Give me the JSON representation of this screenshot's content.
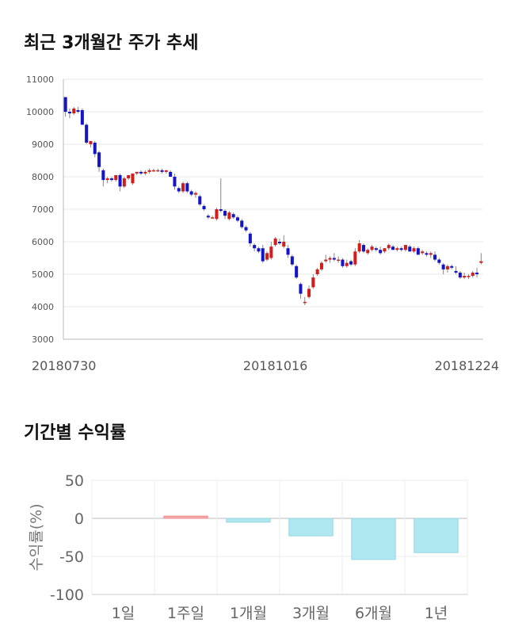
{
  "section_titles": {
    "price_trend": "최근 3개월간 주가 추세",
    "period_returns": "기간별 수익률"
  },
  "chart_data": [
    {
      "type": "candlestick",
      "title": "최근 3개월간 주가 추세",
      "ylim": [
        3000,
        11000
      ],
      "y_ticks": [
        3000,
        4000,
        5000,
        6000,
        7000,
        8000,
        9000,
        10000,
        11000
      ],
      "x_tick_labels": [
        {
          "index": 0,
          "label": "20180730"
        },
        {
          "index": 50,
          "label": "20181016"
        },
        {
          "index": 99,
          "label": "20181224"
        }
      ],
      "up_color": "#d21d1d",
      "down_color": "#1515c8",
      "grid": true,
      "ohlc": [
        [
          10450,
          10450,
          9850,
          10000
        ],
        [
          10000,
          10100,
          9800,
          9950
        ],
        [
          9950,
          10150,
          9900,
          10100
        ],
        [
          10050,
          10150,
          9950,
          10000
        ],
        [
          10050,
          10100,
          9600,
          9600
        ],
        [
          9600,
          9650,
          9000,
          9050
        ],
        [
          9000,
          9100,
          8900,
          9100
        ],
        [
          9050,
          9100,
          8600,
          8700
        ],
        [
          8750,
          8800,
          8150,
          8300
        ],
        [
          8200,
          8250,
          7700,
          7900
        ],
        [
          7900,
          8000,
          7800,
          7950
        ],
        [
          7950,
          8000,
          7850,
          7900
        ],
        [
          7900,
          8050,
          7850,
          8050
        ],
        [
          8050,
          8100,
          7550,
          7700
        ],
        [
          7700,
          8000,
          7650,
          7950
        ],
        [
          7950,
          8050,
          7900,
          8050
        ],
        [
          7800,
          8100,
          7750,
          8100
        ],
        [
          8100,
          8150,
          8050,
          8150
        ],
        [
          8150,
          8200,
          8050,
          8100
        ],
        [
          8100,
          8200,
          8050,
          8150
        ],
        [
          8150,
          8250,
          8100,
          8200
        ],
        [
          8200,
          8250,
          8150,
          8200
        ],
        [
          8200,
          8250,
          8150,
          8200
        ],
        [
          8200,
          8250,
          8100,
          8150
        ],
        [
          8150,
          8200,
          8100,
          8200
        ],
        [
          8150,
          8200,
          8000,
          8000
        ],
        [
          8000,
          8100,
          7600,
          7700
        ],
        [
          7650,
          7700,
          7500,
          7550
        ],
        [
          7550,
          7850,
          7500,
          7800
        ],
        [
          7800,
          7850,
          7500,
          7550
        ],
        [
          7550,
          7600,
          7400,
          7450
        ],
        [
          7450,
          7550,
          7350,
          7500
        ],
        [
          7400,
          7450,
          7100,
          7150
        ],
        [
          7100,
          7150,
          6950,
          7000
        ],
        [
          6800,
          6850,
          6700,
          6750
        ],
        [
          6750,
          6800,
          6700,
          6750
        ],
        [
          6700,
          7050,
          6650,
          7000
        ],
        [
          7000,
          7950,
          6900,
          6950
        ],
        [
          6950,
          7000,
          6700,
          6800
        ],
        [
          6700,
          6950,
          6650,
          6900
        ],
        [
          6850,
          6900,
          6700,
          6750
        ],
        [
          6750,
          6800,
          6600,
          6650
        ],
        [
          6650,
          6700,
          6400,
          6450
        ],
        [
          6450,
          6500,
          6300,
          6350
        ],
        [
          6250,
          6300,
          5850,
          5950
        ],
        [
          5900,
          5950,
          5700,
          5800
        ],
        [
          5800,
          5850,
          5650,
          5700
        ],
        [
          5800,
          5900,
          5350,
          5400
        ],
        [
          5450,
          5700,
          5400,
          5650
        ],
        [
          5500,
          6000,
          5450,
          5850
        ],
        [
          5900,
          6150,
          5850,
          6100
        ],
        [
          6000,
          6100,
          5900,
          5950
        ],
        [
          5850,
          6200,
          5800,
          6000
        ],
        [
          5800,
          5900,
          5500,
          5600
        ],
        [
          5550,
          5600,
          5250,
          5300
        ],
        [
          5250,
          5300,
          4850,
          4900
        ],
        [
          4700,
          4750,
          4250,
          4400
        ],
        [
          4150,
          4300,
          4050,
          4150
        ],
        [
          4300,
          4650,
          4250,
          4550
        ],
        [
          4600,
          5000,
          4550,
          4900
        ],
        [
          5000,
          5200,
          4950,
          5150
        ],
        [
          5150,
          5400,
          5100,
          5350
        ],
        [
          5400,
          5600,
          5350,
          5450
        ],
        [
          5450,
          5550,
          5350,
          5500
        ],
        [
          5500,
          5650,
          5400,
          5450
        ],
        [
          5450,
          5550,
          5350,
          5450
        ],
        [
          5450,
          5500,
          5200,
          5250
        ],
        [
          5250,
          5450,
          5200,
          5350
        ],
        [
          5400,
          5450,
          5250,
          5300
        ],
        [
          5300,
          5800,
          5250,
          5700
        ],
        [
          5700,
          6050,
          5650,
          5950
        ],
        [
          5900,
          5950,
          5650,
          5700
        ],
        [
          5650,
          5800,
          5600,
          5750
        ],
        [
          5750,
          5900,
          5700,
          5850
        ],
        [
          5800,
          5850,
          5700,
          5750
        ],
        [
          5750,
          5850,
          5600,
          5650
        ],
        [
          5700,
          5800,
          5650,
          5800
        ],
        [
          5800,
          5950,
          5750,
          5900
        ],
        [
          5850,
          5900,
          5750,
          5750
        ],
        [
          5750,
          5850,
          5700,
          5800
        ],
        [
          5800,
          5850,
          5700,
          5750
        ],
        [
          5750,
          5900,
          5700,
          5900
        ],
        [
          5850,
          5900,
          5700,
          5700
        ],
        [
          5700,
          5850,
          5650,
          5800
        ],
        [
          5800,
          5850,
          5600,
          5600
        ],
        [
          5650,
          5750,
          5600,
          5700
        ],
        [
          5650,
          5700,
          5550,
          5600
        ],
        [
          5600,
          5700,
          5500,
          5650
        ],
        [
          5600,
          5700,
          5400,
          5450
        ],
        [
          5450,
          5500,
          5300,
          5350
        ],
        [
          5300,
          5350,
          5000,
          5150
        ],
        [
          5150,
          5300,
          5050,
          5250
        ],
        [
          5250,
          5300,
          5150,
          5200
        ],
        [
          5100,
          5250,
          5000,
          5050
        ],
        [
          5050,
          5100,
          4850,
          4900
        ],
        [
          4900,
          5050,
          4850,
          4950
        ],
        [
          4950,
          5000,
          4850,
          4950
        ],
        [
          4950,
          5100,
          4900,
          5050
        ],
        [
          5050,
          5200,
          4900,
          5000
        ],
        [
          5350,
          5650,
          5300,
          5400
        ]
      ]
    },
    {
      "type": "bar",
      "title": "기간별 수익률",
      "ylabel": "수익률(%)",
      "ylim": [
        -100,
        50
      ],
      "y_ticks": [
        -100,
        -50,
        0,
        50
      ],
      "categories": [
        "1일",
        "1주일",
        "1개월",
        "3개월",
        "6개월",
        "1년"
      ],
      "values": [
        0,
        3,
        -5,
        -23,
        -54,
        -45
      ],
      "positive_color": "#f7a8a8",
      "negative_color": "#b0e8f2",
      "grid": true
    }
  ]
}
